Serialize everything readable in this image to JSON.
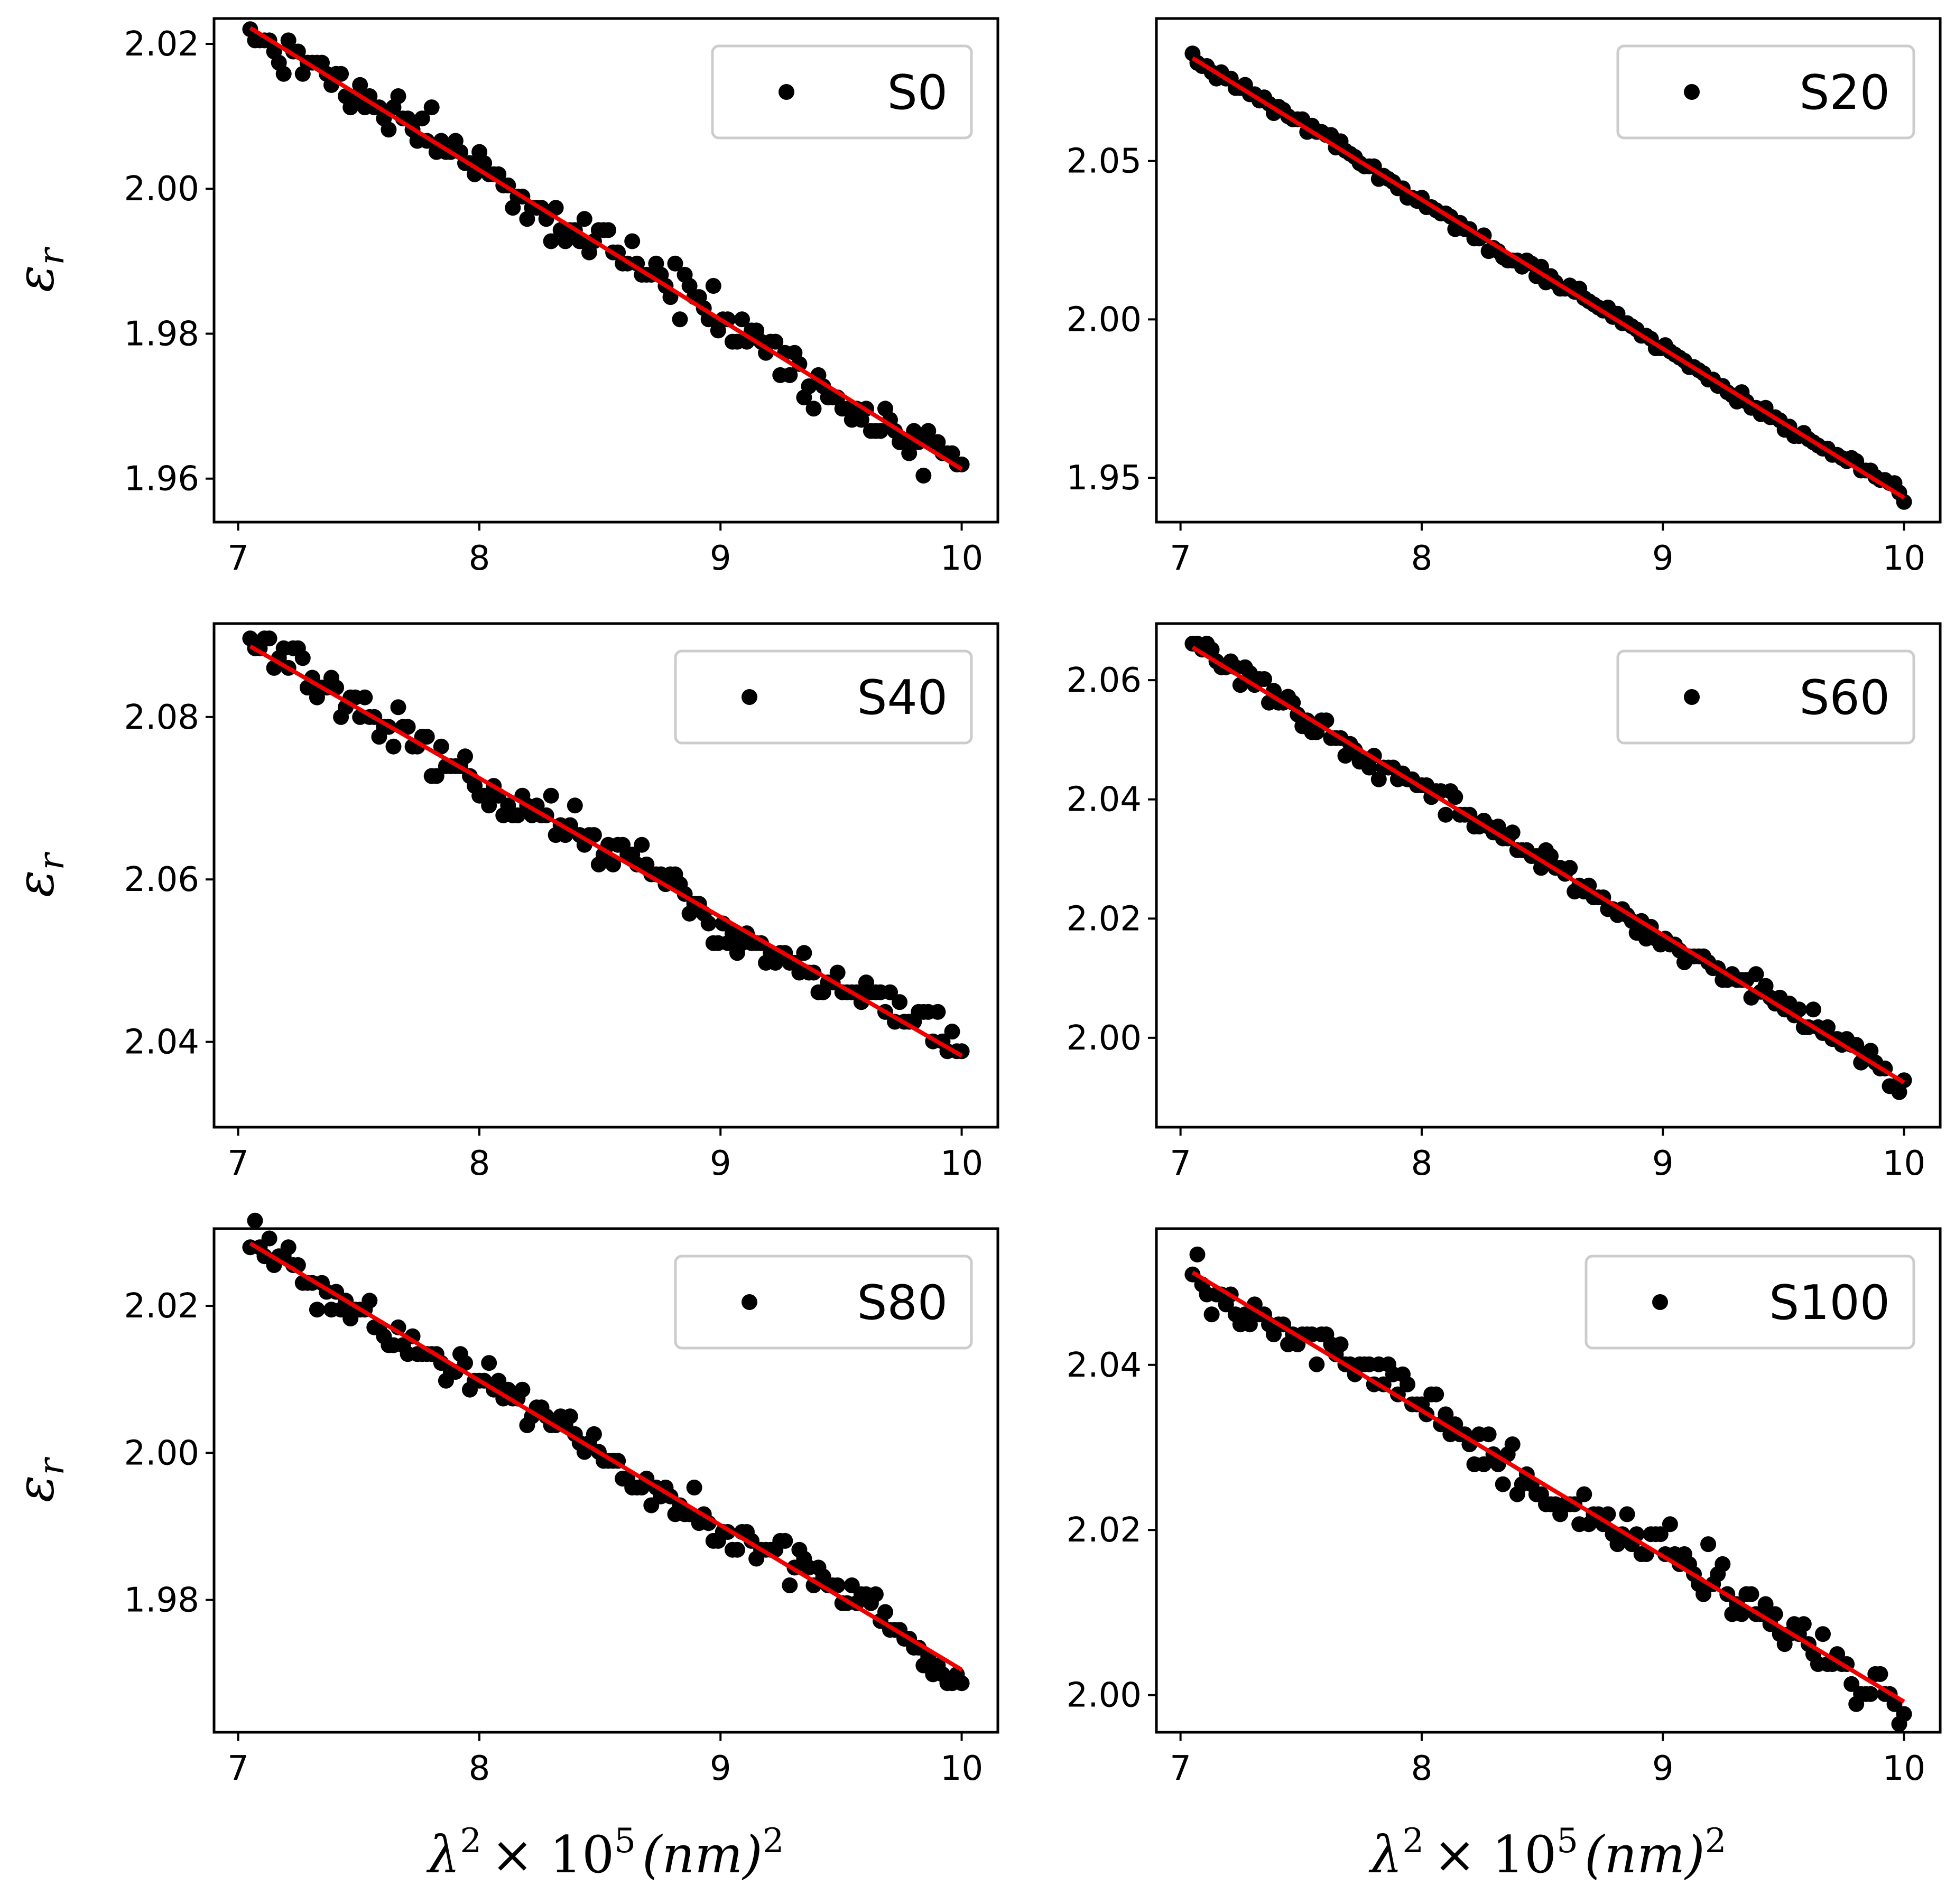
{
  "figure": {
    "ylabel_symbol": "ε",
    "ylabel_sub": "r",
    "xlabel_parts": [
      "λ",
      "2",
      "× 10",
      "5",
      "(nm)",
      "2"
    ]
  },
  "chart_data": [
    {
      "type": "scatter",
      "title": "",
      "legend": "S0",
      "legend_position": "top-right",
      "xlabel": "",
      "ylabel": "εr",
      "xlim": [
        6.9,
        10.15
      ],
      "ylim": [
        1.954,
        2.0235
      ],
      "xticks": [
        "7",
        "8",
        "9",
        "10"
      ],
      "yticks": [
        "1.96",
        "1.98",
        "2.00",
        "2.02"
      ],
      "fit": {
        "x": [
          7.05,
          10.0
        ],
        "y": [
          2.0222,
          1.9613
        ]
      },
      "noise": 0.0028,
      "n_points": 150
    },
    {
      "type": "scatter",
      "title": "",
      "legend": "S20",
      "legend_position": "top-right",
      "xlabel": "",
      "ylabel": "",
      "xlim": [
        6.9,
        10.15
      ],
      "ylim": [
        1.936,
        2.095
      ],
      "xticks": [
        "7",
        "8",
        "9",
        "10"
      ],
      "yticks": [
        "1.95",
        "2.00",
        "2.05"
      ],
      "fit": {
        "x": [
          7.05,
          10.0
        ],
        "y": [
          2.0825,
          1.9437
        ]
      },
      "noise": 0.0018,
      "n_points": 150
    },
    {
      "type": "scatter",
      "title": "",
      "legend": "S40",
      "legend_position": "top-right",
      "xlabel": "",
      "ylabel": "εr",
      "xlim": [
        6.9,
        10.15
      ],
      "ylim": [
        2.0295,
        2.0915
      ],
      "xticks": [
        "7",
        "8",
        "9",
        "10"
      ],
      "yticks": [
        "2.04",
        "2.06",
        "2.08"
      ],
      "fit": {
        "x": [
          7.05,
          10.0
        ],
        "y": [
          2.0887,
          2.0383
        ]
      },
      "noise": 0.0022,
      "n_points": 150
    },
    {
      "type": "scatter",
      "title": "",
      "legend": "S60",
      "legend_position": "top-right",
      "xlabel": "",
      "ylabel": "",
      "xlim": [
        6.9,
        10.15
      ],
      "ylim": [
        1.985,
        2.0695
      ],
      "xticks": [
        "7",
        "8",
        "9",
        "10"
      ],
      "yticks": [
        "2.00",
        "2.02",
        "2.04",
        "2.06"
      ],
      "fit": {
        "x": [
          7.05,
          10.0
        ],
        "y": [
          2.0655,
          1.9925
        ]
      },
      "noise": 0.0018,
      "n_points": 150
    },
    {
      "type": "scatter",
      "title": "",
      "legend": "S80",
      "legend_position": "top-right",
      "xlabel": "λ² × 10⁵ (nm)²",
      "ylabel": "εr",
      "xlim": [
        6.9,
        10.15
      ],
      "ylim": [
        1.962,
        2.0305
      ],
      "xticks": [
        "7",
        "8",
        "9",
        "10"
      ],
      "yticks": [
        "1.98",
        "2.00",
        "2.02"
      ],
      "fit": {
        "x": [
          7.05,
          10.0
        ],
        "y": [
          2.0285,
          1.9705
        ]
      },
      "noise": 0.0022,
      "n_points": 150
    },
    {
      "type": "scatter",
      "title": "",
      "legend": "S100",
      "legend_position": "top-right",
      "xlabel": "λ² × 10⁵ (nm)²",
      "ylabel": "",
      "xlim": [
        6.9,
        10.15
      ],
      "ylim": [
        1.9955,
        2.0565
      ],
      "xticks": [
        "7",
        "8",
        "9",
        "10"
      ],
      "yticks": [
        "2.00",
        "2.02",
        "2.04"
      ],
      "fit": {
        "x": [
          7.05,
          10.0
        ],
        "y": [
          2.0512,
          1.9992
        ]
      },
      "noise": 0.0022,
      "n_points": 150
    }
  ]
}
